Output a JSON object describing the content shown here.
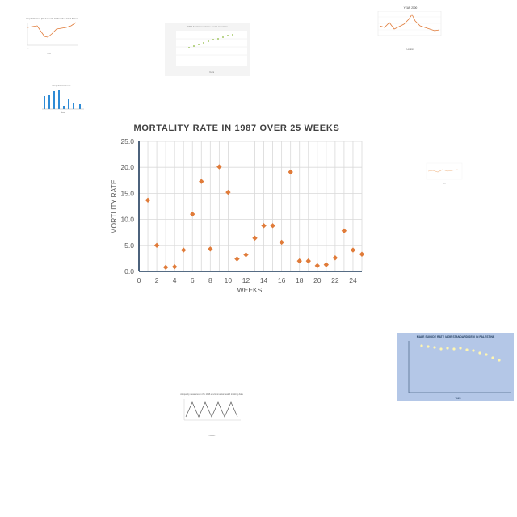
{
  "chart_data": {
    "type": "scatter",
    "title": "MORTALITY RATE IN 1987 OVER 25 WEEKS",
    "xlabel": "WEEKS",
    "ylabel": "MORTLITY RATE",
    "xlim": [
      0,
      25
    ],
    "ylim": [
      0,
      25
    ],
    "x_ticks": [
      "0",
      "2",
      "4",
      "6",
      "8",
      "10",
      "12",
      "14",
      "16",
      "18",
      "20",
      "22",
      "24"
    ],
    "y_ticks": [
      "0.0",
      "5.0",
      "10.0",
      "15.0",
      "20.0",
      "25.0"
    ],
    "grid": true,
    "marker_color": "#e07b39",
    "x": [
      1,
      2,
      3,
      4,
      5,
      6,
      7,
      8,
      9,
      10,
      11,
      12,
      13,
      14,
      15,
      16,
      17,
      18,
      19,
      20,
      21,
      22,
      23,
      24,
      25
    ],
    "y": [
      13.7,
      5.0,
      0.8,
      0.9,
      4.1,
      11.0,
      17.3,
      4.3,
      20.1,
      15.2,
      2.4,
      3.2,
      6.4,
      8.8,
      8.8,
      5.6,
      19.1,
      2.0,
      2.0,
      1.1,
      1.3,
      2.6,
      7.8,
      4.1,
      3.3
    ]
  },
  "thumbnails": {
    "top_left_title": "Hospitalizations (%) due to flu 1996 in the United States",
    "top_middle_title": "CDS bacteria vaccine count over time",
    "top_right_title": "YEAR 2100",
    "bottom_right_title": "MALE SUICIDE RATE (AGE STANDARDISED) IN PALESTINE",
    "bottom_middle_title": "Air quality measures in the 1996 environmental health tracking data"
  },
  "colors": {
    "accent_orange": "#e07b39",
    "bar_blue": "#2e8bd6",
    "axis_dark": "#1f3b5c",
    "panel_blue": "#b4c7e7"
  }
}
